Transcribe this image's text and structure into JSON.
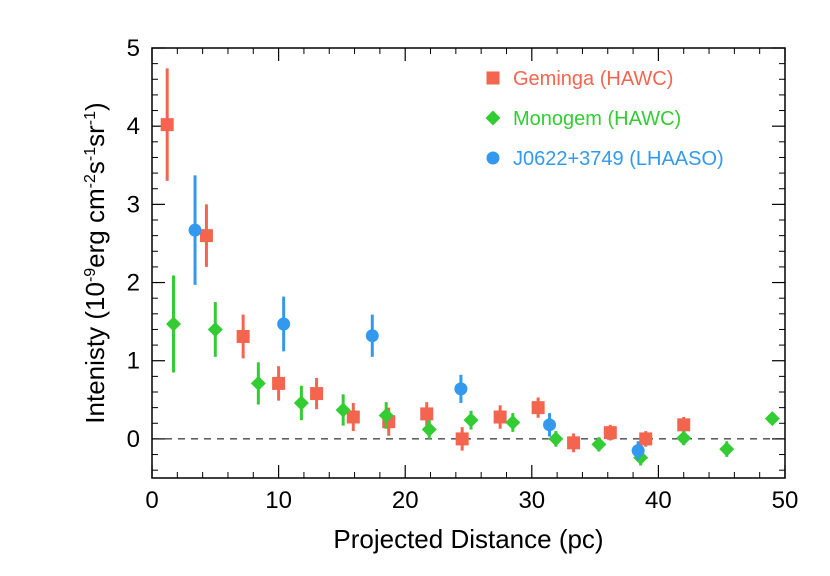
{
  "chart_data": {
    "type": "scatter",
    "title": "",
    "xlabel": "Projected Distance (pc)",
    "ylabel": {
      "prefix": "Intenisty (10",
      "exp1": "-9",
      "mid1": "erg cm",
      "exp2": "-2",
      "mid2": "s",
      "exp3": "-1",
      "mid3": "sr",
      "exp4": "-1",
      "suffix": ")"
    },
    "xlim": [
      0,
      50
    ],
    "ylim": [
      -0.5,
      5
    ],
    "xticks": [
      "0",
      "10",
      "20",
      "30",
      "40",
      "50"
    ],
    "yticks": [
      "0",
      "1",
      "2",
      "3",
      "4",
      "5"
    ],
    "reference_line": {
      "y": 0,
      "style": "dashed"
    },
    "legend_position": "top-right",
    "series": [
      {
        "name": "Geminga (HAWC)",
        "marker": "square",
        "color": "#f4654f",
        "points": [
          {
            "x": 1.2,
            "y": 4.02,
            "err": 0.72
          },
          {
            "x": 4.3,
            "y": 2.6,
            "err": 0.4
          },
          {
            "x": 7.2,
            "y": 1.31,
            "err": 0.28
          },
          {
            "x": 10.0,
            "y": 0.71,
            "err": 0.22
          },
          {
            "x": 13.0,
            "y": 0.58,
            "err": 0.2
          },
          {
            "x": 15.9,
            "y": 0.28,
            "err": 0.18
          },
          {
            "x": 18.7,
            "y": 0.22,
            "err": 0.18
          },
          {
            "x": 21.7,
            "y": 0.32,
            "err": 0.15
          },
          {
            "x": 24.5,
            "y": 0.0,
            "err": 0.15
          },
          {
            "x": 27.5,
            "y": 0.28,
            "err": 0.15
          },
          {
            "x": 30.5,
            "y": 0.4,
            "err": 0.13
          },
          {
            "x": 33.3,
            "y": -0.05,
            "err": 0.12
          },
          {
            "x": 36.2,
            "y": 0.08,
            "err": 0.1
          },
          {
            "x": 39.0,
            "y": 0.0,
            "err": 0.1
          },
          {
            "x": 42.0,
            "y": 0.18,
            "err": 0.1
          }
        ]
      },
      {
        "name": "Monogem (HAWC)",
        "marker": "diamond",
        "color": "#33cc33",
        "points": [
          {
            "x": 1.7,
            "y": 1.47,
            "err": 0.62
          },
          {
            "x": 5.0,
            "y": 1.4,
            "err": 0.35
          },
          {
            "x": 8.4,
            "y": 0.71,
            "err": 0.27
          },
          {
            "x": 11.8,
            "y": 0.46,
            "err": 0.22
          },
          {
            "x": 15.1,
            "y": 0.37,
            "err": 0.2
          },
          {
            "x": 18.5,
            "y": 0.3,
            "err": 0.17
          },
          {
            "x": 21.9,
            "y": 0.12,
            "err": 0.12
          },
          {
            "x": 25.2,
            "y": 0.24,
            "err": 0.12
          },
          {
            "x": 28.5,
            "y": 0.21,
            "err": 0.12
          },
          {
            "x": 31.9,
            "y": 0.0,
            "err": 0.1
          },
          {
            "x": 35.3,
            "y": -0.07,
            "err": 0.09
          },
          {
            "x": 38.6,
            "y": -0.24,
            "err": 0.1
          },
          {
            "x": 42.0,
            "y": 0.01,
            "err": 0.09
          },
          {
            "x": 45.4,
            "y": -0.13,
            "err": 0.1
          },
          {
            "x": 49.0,
            "y": 0.26,
            "err": 0.05
          }
        ]
      },
      {
        "name": "J0622+3749 (LHAASO)",
        "marker": "circle",
        "color": "#3399ee",
        "points": [
          {
            "x": 3.4,
            "y": 2.67,
            "err": 0.7
          },
          {
            "x": 10.4,
            "y": 1.47,
            "err": 0.35
          },
          {
            "x": 17.4,
            "y": 1.32,
            "err": 0.27
          },
          {
            "x": 24.4,
            "y": 0.64,
            "err": 0.18
          },
          {
            "x": 31.4,
            "y": 0.18,
            "err": 0.15
          },
          {
            "x": 38.4,
            "y": -0.15,
            "err": 0.12
          }
        ]
      }
    ]
  }
}
